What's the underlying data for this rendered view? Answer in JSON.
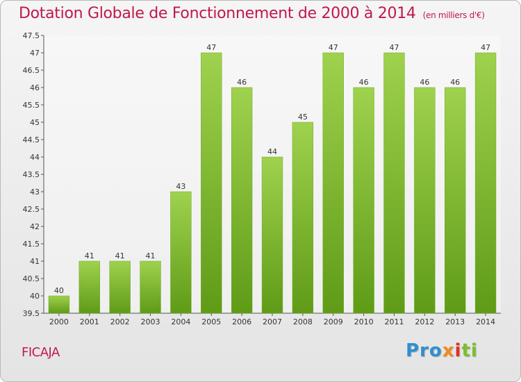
{
  "chart_data": {
    "type": "bar",
    "title": "Dotation Globale de Fonctionnement de 2000 à 2014",
    "subtitle": "(en milliers d'€)",
    "categories": [
      "2000",
      "2001",
      "2002",
      "2003",
      "2004",
      "2005",
      "2006",
      "2007",
      "2008",
      "2009",
      "2010",
      "2011",
      "2012",
      "2013",
      "2014"
    ],
    "values": [
      40,
      41,
      41,
      41,
      43,
      47,
      46,
      44,
      45,
      47,
      46,
      47,
      46,
      46,
      47
    ],
    "value_labels": [
      "40",
      "41",
      "41",
      "41",
      "43",
      "47",
      "46",
      "44",
      "45",
      "47",
      "46",
      "47",
      "46",
      "46",
      "47"
    ],
    "ylim": [
      39.5,
      47.5
    ],
    "yticks": [
      "39.5",
      "40",
      "40.5",
      "41",
      "41.5",
      "42",
      "42.5",
      "43",
      "43.5",
      "44",
      "44.5",
      "45",
      "45.5",
      "46",
      "46.5",
      "47",
      "47.5"
    ],
    "xlabel": "",
    "ylabel": "",
    "grid": false,
    "bar_color": "#7dba2a",
    "title_color": "#c0184a"
  },
  "commune": "FICAJA",
  "logo": {
    "p1": "Pro",
    "p2": "x",
    "p3": "i",
    "p4": "ti"
  }
}
